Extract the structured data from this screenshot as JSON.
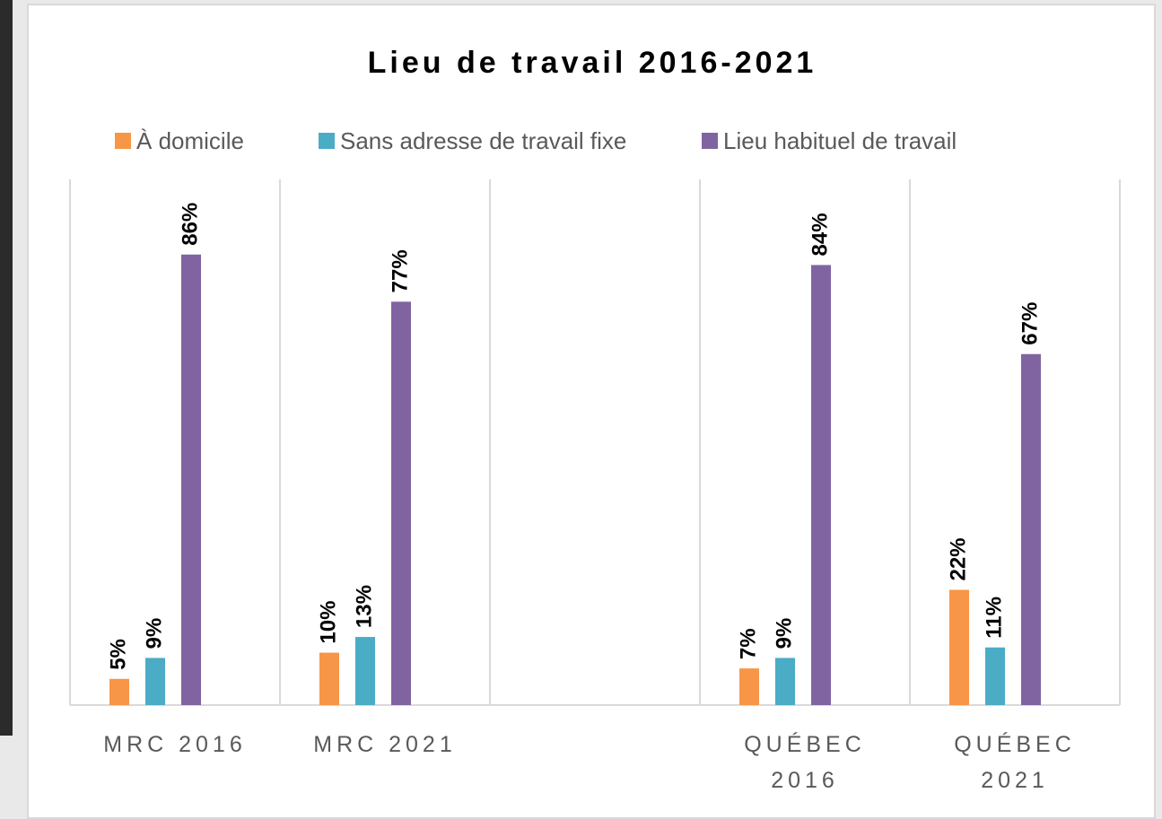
{
  "chart_data": {
    "type": "bar",
    "title": "Lieu de travail 2016-2021",
    "categories": [
      "MRC 2016",
      "MRC 2021",
      null,
      "QUÉBEC 2016",
      "QUÉBEC 2021"
    ],
    "series": [
      {
        "name": "À domicile",
        "color": "#f79646",
        "values": [
          5,
          10,
          null,
          7,
          22
        ],
        "value_labels": [
          "5%",
          "10%",
          null,
          "7%",
          "22%"
        ]
      },
      {
        "name": "Sans adresse de travail fixe",
        "color": "#4bacc6",
        "values": [
          9,
          13,
          null,
          9,
          11
        ],
        "value_labels": [
          "9%",
          "13%",
          null,
          "9%",
          "11%"
        ]
      },
      {
        "name": "Lieu habituel de travail",
        "color": "#8064a2",
        "values": [
          86,
          77,
          null,
          84,
          67
        ],
        "value_labels": [
          "86%",
          "77%",
          null,
          "84%",
          "67%"
        ]
      }
    ],
    "grid": true
  }
}
